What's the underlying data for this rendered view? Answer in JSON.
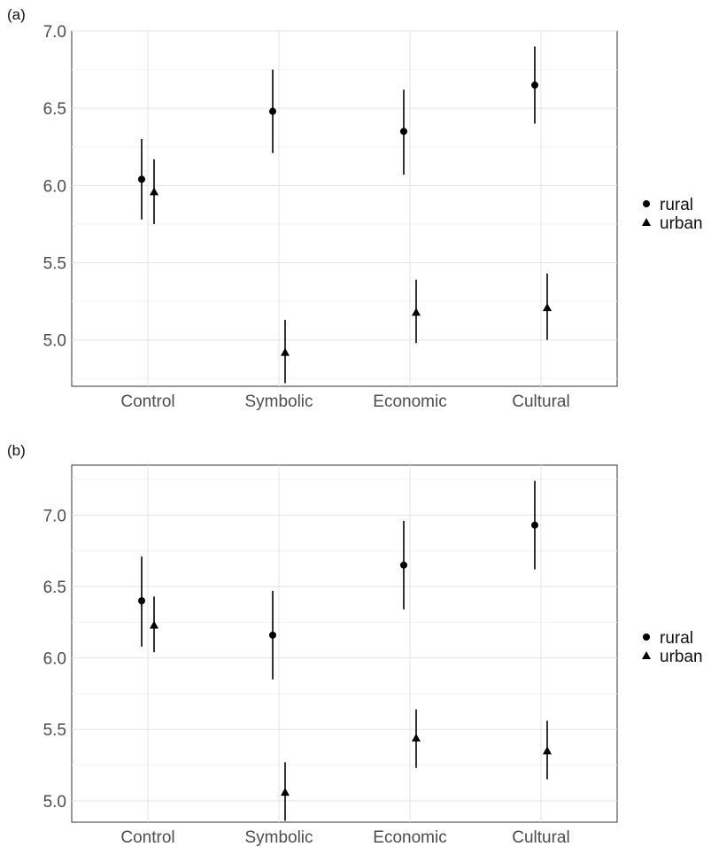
{
  "chart_data": [
    {
      "panel_label": "(a)",
      "type": "scatter",
      "error_bars": true,
      "categories": [
        "Control",
        "Symbolic",
        "Economic",
        "Cultural"
      ],
      "ylim": [
        4.7,
        7.0
      ],
      "yticks": [
        {
          "value": 5.0,
          "label": "5.0"
        },
        {
          "value": 5.5,
          "label": "5.5"
        },
        {
          "value": 6.0,
          "label": "6.0"
        },
        {
          "value": 6.5,
          "label": "6.5"
        },
        {
          "value": 7.0,
          "label": "7.0"
        }
      ],
      "grid": true,
      "legend_position": "right",
      "series": [
        {
          "name": "rural",
          "marker": "circle",
          "color": "#000000",
          "values": [
            6.04,
            6.48,
            6.35,
            6.65
          ],
          "lower": [
            5.78,
            6.21,
            6.07,
            6.4
          ],
          "upper": [
            6.3,
            6.75,
            6.62,
            6.9
          ]
        },
        {
          "name": "urban",
          "marker": "triangle",
          "color": "#000000",
          "values": [
            5.96,
            4.92,
            5.18,
            5.21
          ],
          "lower": [
            5.75,
            4.72,
            4.98,
            5.0
          ],
          "upper": [
            6.17,
            5.13,
            5.39,
            5.43
          ]
        }
      ]
    },
    {
      "panel_label": "(b)",
      "type": "scatter",
      "error_bars": true,
      "categories": [
        "Control",
        "Symbolic",
        "Economic",
        "Cultural"
      ],
      "ylim": [
        4.85,
        7.35
      ],
      "yticks": [
        {
          "value": 5.0,
          "label": "5.0"
        },
        {
          "value": 5.5,
          "label": "5.5"
        },
        {
          "value": 6.0,
          "label": "6.0"
        },
        {
          "value": 6.5,
          "label": "6.5"
        },
        {
          "value": 7.0,
          "label": "7.0"
        }
      ],
      "grid": true,
      "legend_position": "right",
      "series": [
        {
          "name": "rural",
          "marker": "circle",
          "color": "#000000",
          "values": [
            6.4,
            6.16,
            6.65,
            6.93
          ],
          "lower": [
            6.08,
            5.85,
            6.34,
            6.62
          ],
          "upper": [
            6.71,
            6.47,
            6.96,
            7.24
          ]
        },
        {
          "name": "urban",
          "marker": "triangle",
          "color": "#000000",
          "values": [
            6.23,
            5.06,
            5.44,
            5.35
          ],
          "lower": [
            6.04,
            4.86,
            5.23,
            5.15
          ],
          "upper": [
            6.43,
            5.27,
            5.64,
            5.56
          ]
        }
      ]
    }
  ]
}
